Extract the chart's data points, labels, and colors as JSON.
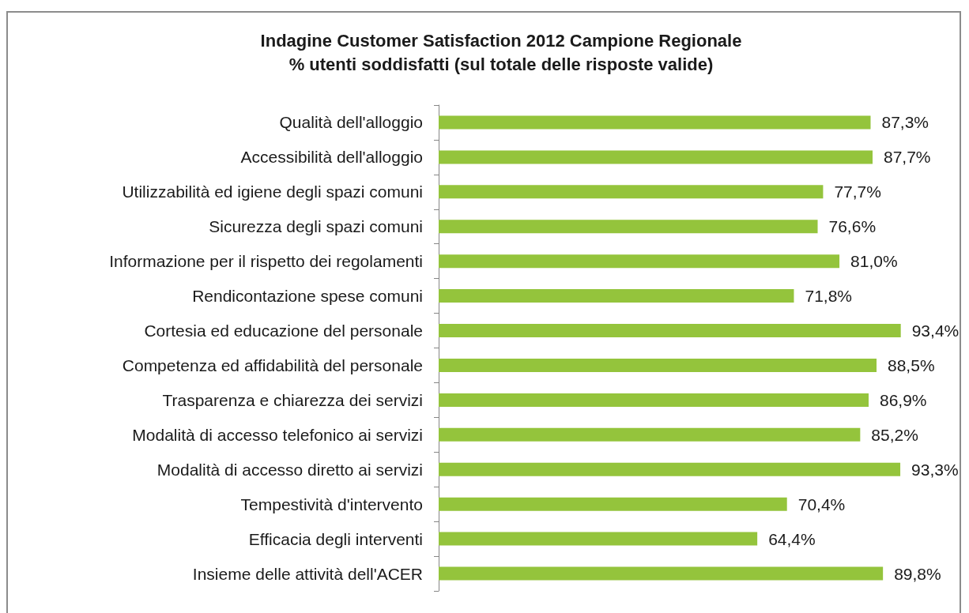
{
  "chart_data": {
    "type": "bar",
    "orientation": "horizontal",
    "title": "Indagine Customer Satisfaction 2012 Campione Regionale",
    "subtitle": "% utenti soddisfatti (sul totale delle risposte valide)",
    "categories": [
      "Qualità dell'alloggio",
      "Accessibilità dell'alloggio",
      "Utilizzabilità ed igiene degli spazi comuni",
      "Sicurezza degli spazi comuni",
      "Informazione per il rispetto dei regolamenti",
      "Rendicontazione spese comuni",
      "Cortesia ed educazione del personale",
      "Competenza ed affidabilità del personale",
      "Trasparenza e chiarezza dei servizi",
      "Modalità di accesso telefonico ai servizi",
      "Modalità di accesso diretto ai servizi",
      "Tempestività d'intervento",
      "Efficacia degli interventi",
      "Insieme delle attività dell'ACER"
    ],
    "values": [
      87.3,
      87.7,
      77.7,
      76.6,
      81.0,
      71.8,
      93.4,
      88.5,
      86.9,
      85.2,
      93.3,
      70.4,
      64.4,
      89.8
    ],
    "value_labels": [
      "87,3%",
      "87,7%",
      "77,7%",
      "76,6%",
      "81,0%",
      "71,8%",
      "93,4%",
      "88,5%",
      "86,9%",
      "85,2%",
      "93,3%",
      "70,4%",
      "64,4%",
      "89,8%"
    ],
    "color": "#94c43c"
  }
}
